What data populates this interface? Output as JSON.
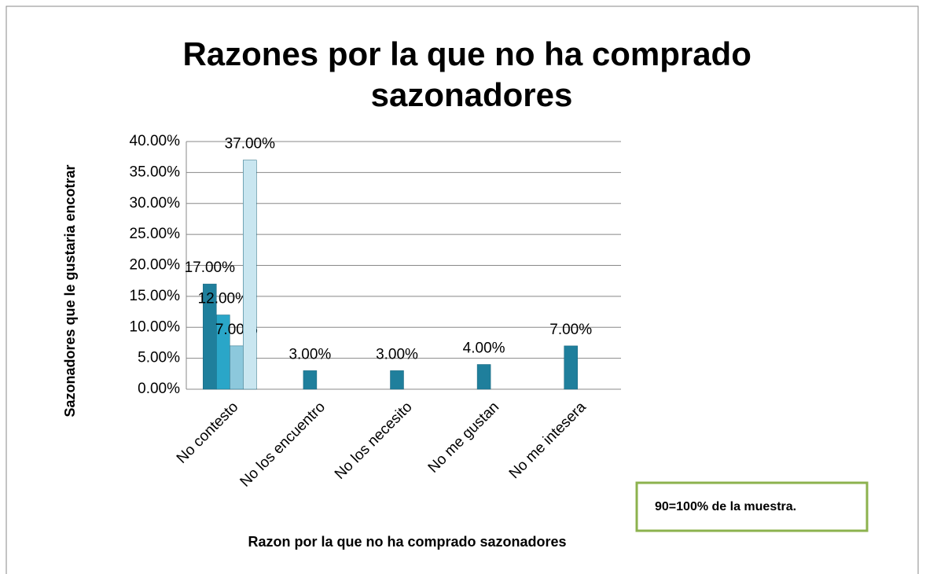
{
  "chart_data": {
    "type": "bar",
    "title": "Razones por la que no ha comprado sazonadores",
    "xlabel": "Razon por la que no ha comprado sazonadores",
    "ylabel": "Sazonadores que le gustaria encotrar",
    "annotation": "90=100% de la muestra.",
    "categories": [
      "No contesto",
      "No los encuentro",
      "No los necesito",
      "No me gustan",
      "No me intesera"
    ],
    "series": [
      {
        "color": "#1f7f9c",
        "values": [
          17,
          3,
          3,
          4,
          7
        ],
        "value_labels": [
          "17.00%",
          "3.00%",
          "3.00%",
          "4.00%",
          "7.00%"
        ]
      },
      {
        "color": "#2aa6c8",
        "values": [
          12,
          null,
          null,
          null,
          null
        ],
        "value_labels": [
          "12.00%",
          null,
          null,
          null,
          null
        ]
      },
      {
        "color": "#8cc8dc",
        "values": [
          7,
          null,
          null,
          null,
          null
        ],
        "value_labels": [
          "7.00%",
          null,
          null,
          null,
          null
        ]
      },
      {
        "color": "#c9e6f0",
        "values": [
          37,
          null,
          null,
          null,
          null
        ],
        "value_labels": [
          "37.00%",
          null,
          null,
          null,
          null
        ]
      }
    ],
    "ylim": [
      0,
      40
    ],
    "yticks": [
      {
        "value": 0,
        "label": "0.00%"
      },
      {
        "value": 5,
        "label": "5.00%"
      },
      {
        "value": 10,
        "label": "10.00%"
      },
      {
        "value": 15,
        "label": "15.00%"
      },
      {
        "value": 20,
        "label": "20.00%"
      },
      {
        "value": 25,
        "label": "25.00%"
      },
      {
        "value": 30,
        "label": "30.00%"
      },
      {
        "value": 35,
        "label": "35.00%"
      },
      {
        "value": 40,
        "label": "40.00%"
      }
    ],
    "grid": true
  }
}
